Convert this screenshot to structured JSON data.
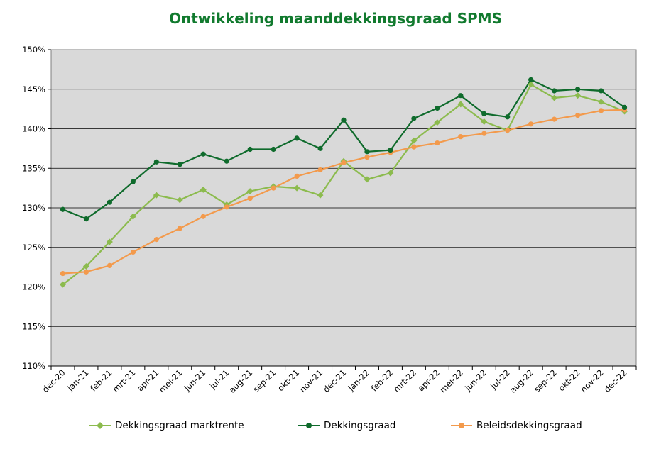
{
  "chart_data": {
    "type": "line",
    "title": "Ontwikkeling maanddekkingsgraad  SPMS",
    "xlabel": "",
    "ylabel": "",
    "categories": [
      "dec-20",
      "jan-21",
      "feb-21",
      "mrt-21",
      "apr-21",
      "mei-21",
      "jun-21",
      "jul-21",
      "aug-21",
      "sep-21",
      "okt-21",
      "nov-21",
      "dec-21",
      "jan-22",
      "feb-22",
      "mrt-22",
      "apr-22",
      "mei-22",
      "jun-22",
      "jul-22",
      "aug-22",
      "sep-22",
      "okt-22",
      "nov-22",
      "dec-22"
    ],
    "ylim": [
      110,
      150
    ],
    "yticks": [
      "110%",
      "115%",
      "120%",
      "125%",
      "130%",
      "135%",
      "140%",
      "145%",
      "150%"
    ],
    "grid": true,
    "legend_position": "bottom",
    "series": [
      {
        "name": "Dekkingsgraad marktrente",
        "color": "#8cbb4e",
        "marker": "diamond",
        "values": [
          120.3,
          122.6,
          125.7,
          128.9,
          131.6,
          131.0,
          132.3,
          130.4,
          132.1,
          132.7,
          132.5,
          131.6,
          135.9,
          133.6,
          134.4,
          138.5,
          140.8,
          143.1,
          140.9,
          139.8,
          145.6,
          143.9,
          144.2,
          143.4,
          142.2
        ]
      },
      {
        "name": "Dekkingsgraad",
        "color": "#0f6b2c",
        "marker": "circle",
        "values": [
          129.8,
          128.6,
          130.7,
          133.3,
          135.8,
          135.5,
          136.8,
          135.9,
          137.4,
          137.4,
          138.8,
          137.5,
          141.1,
          137.1,
          137.3,
          141.3,
          142.6,
          144.2,
          141.9,
          141.5,
          146.2,
          144.8,
          145.0,
          144.8,
          142.7
        ]
      },
      {
        "name": "Beleidsdekkingsgraad",
        "color": "#f39a4c",
        "marker": "circle",
        "values": [
          121.7,
          121.9,
          122.7,
          124.4,
          126.0,
          127.4,
          128.9,
          130.1,
          131.2,
          132.5,
          134.0,
          134.8,
          135.7,
          136.4,
          137.0,
          137.7,
          138.2,
          139.0,
          139.4,
          139.8,
          140.6,
          141.2,
          141.7,
          142.3,
          142.4
        ]
      }
    ]
  }
}
